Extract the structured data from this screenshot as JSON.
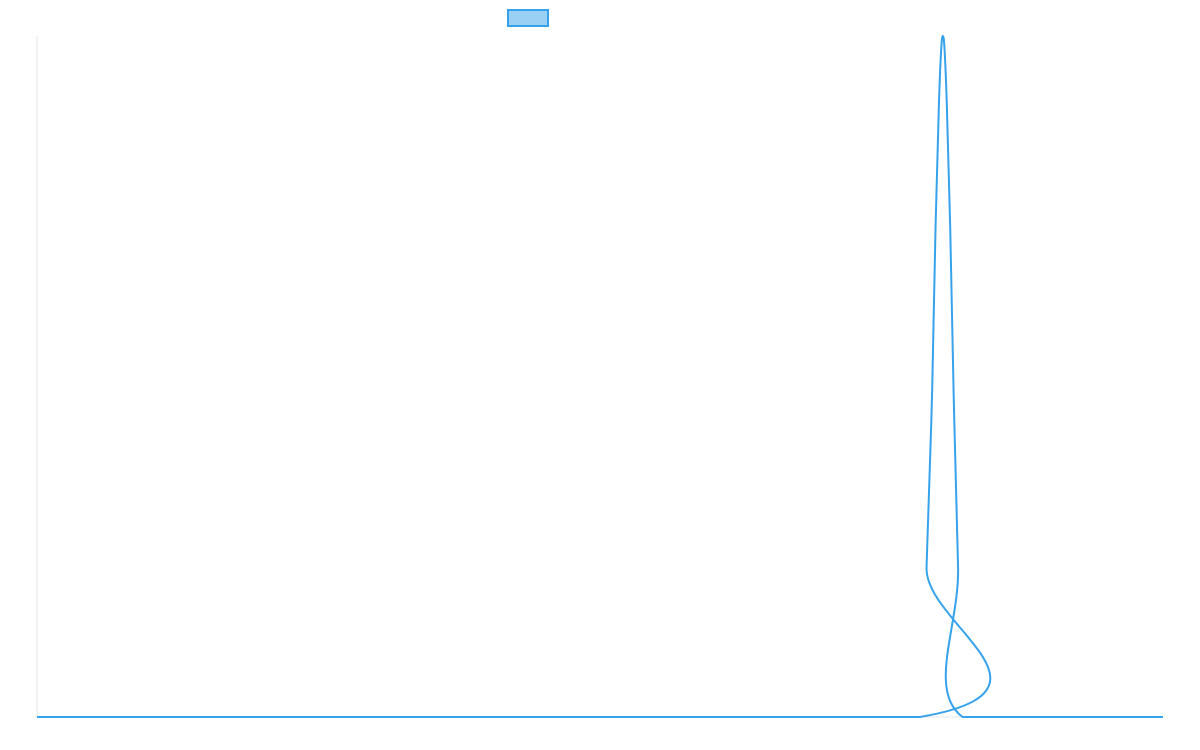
{
  "chart_data": {
    "type": "line",
    "title": "",
    "xlabel": "",
    "ylabel": "",
    "legend": {
      "placement": "top-center",
      "entries": [
        {
          "name": "",
          "swatch_fill": "#9BD0F5",
          "swatch_stroke": "#36A2EB"
        }
      ]
    },
    "grid": false,
    "xlim": [
      0,
      100
    ],
    "ylim": [
      0,
      1
    ],
    "series": [
      {
        "name": "",
        "color": "#36A2EB",
        "x": [
          0,
          78.4,
          79.0,
          79.5,
          79.8,
          80.1,
          80.3,
          80.45,
          80.6,
          80.8,
          81.1,
          81.4,
          81.8,
          82.2,
          100
        ],
        "y": [
          0,
          0,
          0.22,
          0.48,
          0.72,
          0.9,
          0.98,
          1.0,
          0.98,
          0.9,
          0.72,
          0.48,
          0.22,
          0,
          0
        ]
      }
    ],
    "colors": {
      "line": "#36A2EB",
      "axis": "#e6e6e6"
    }
  }
}
